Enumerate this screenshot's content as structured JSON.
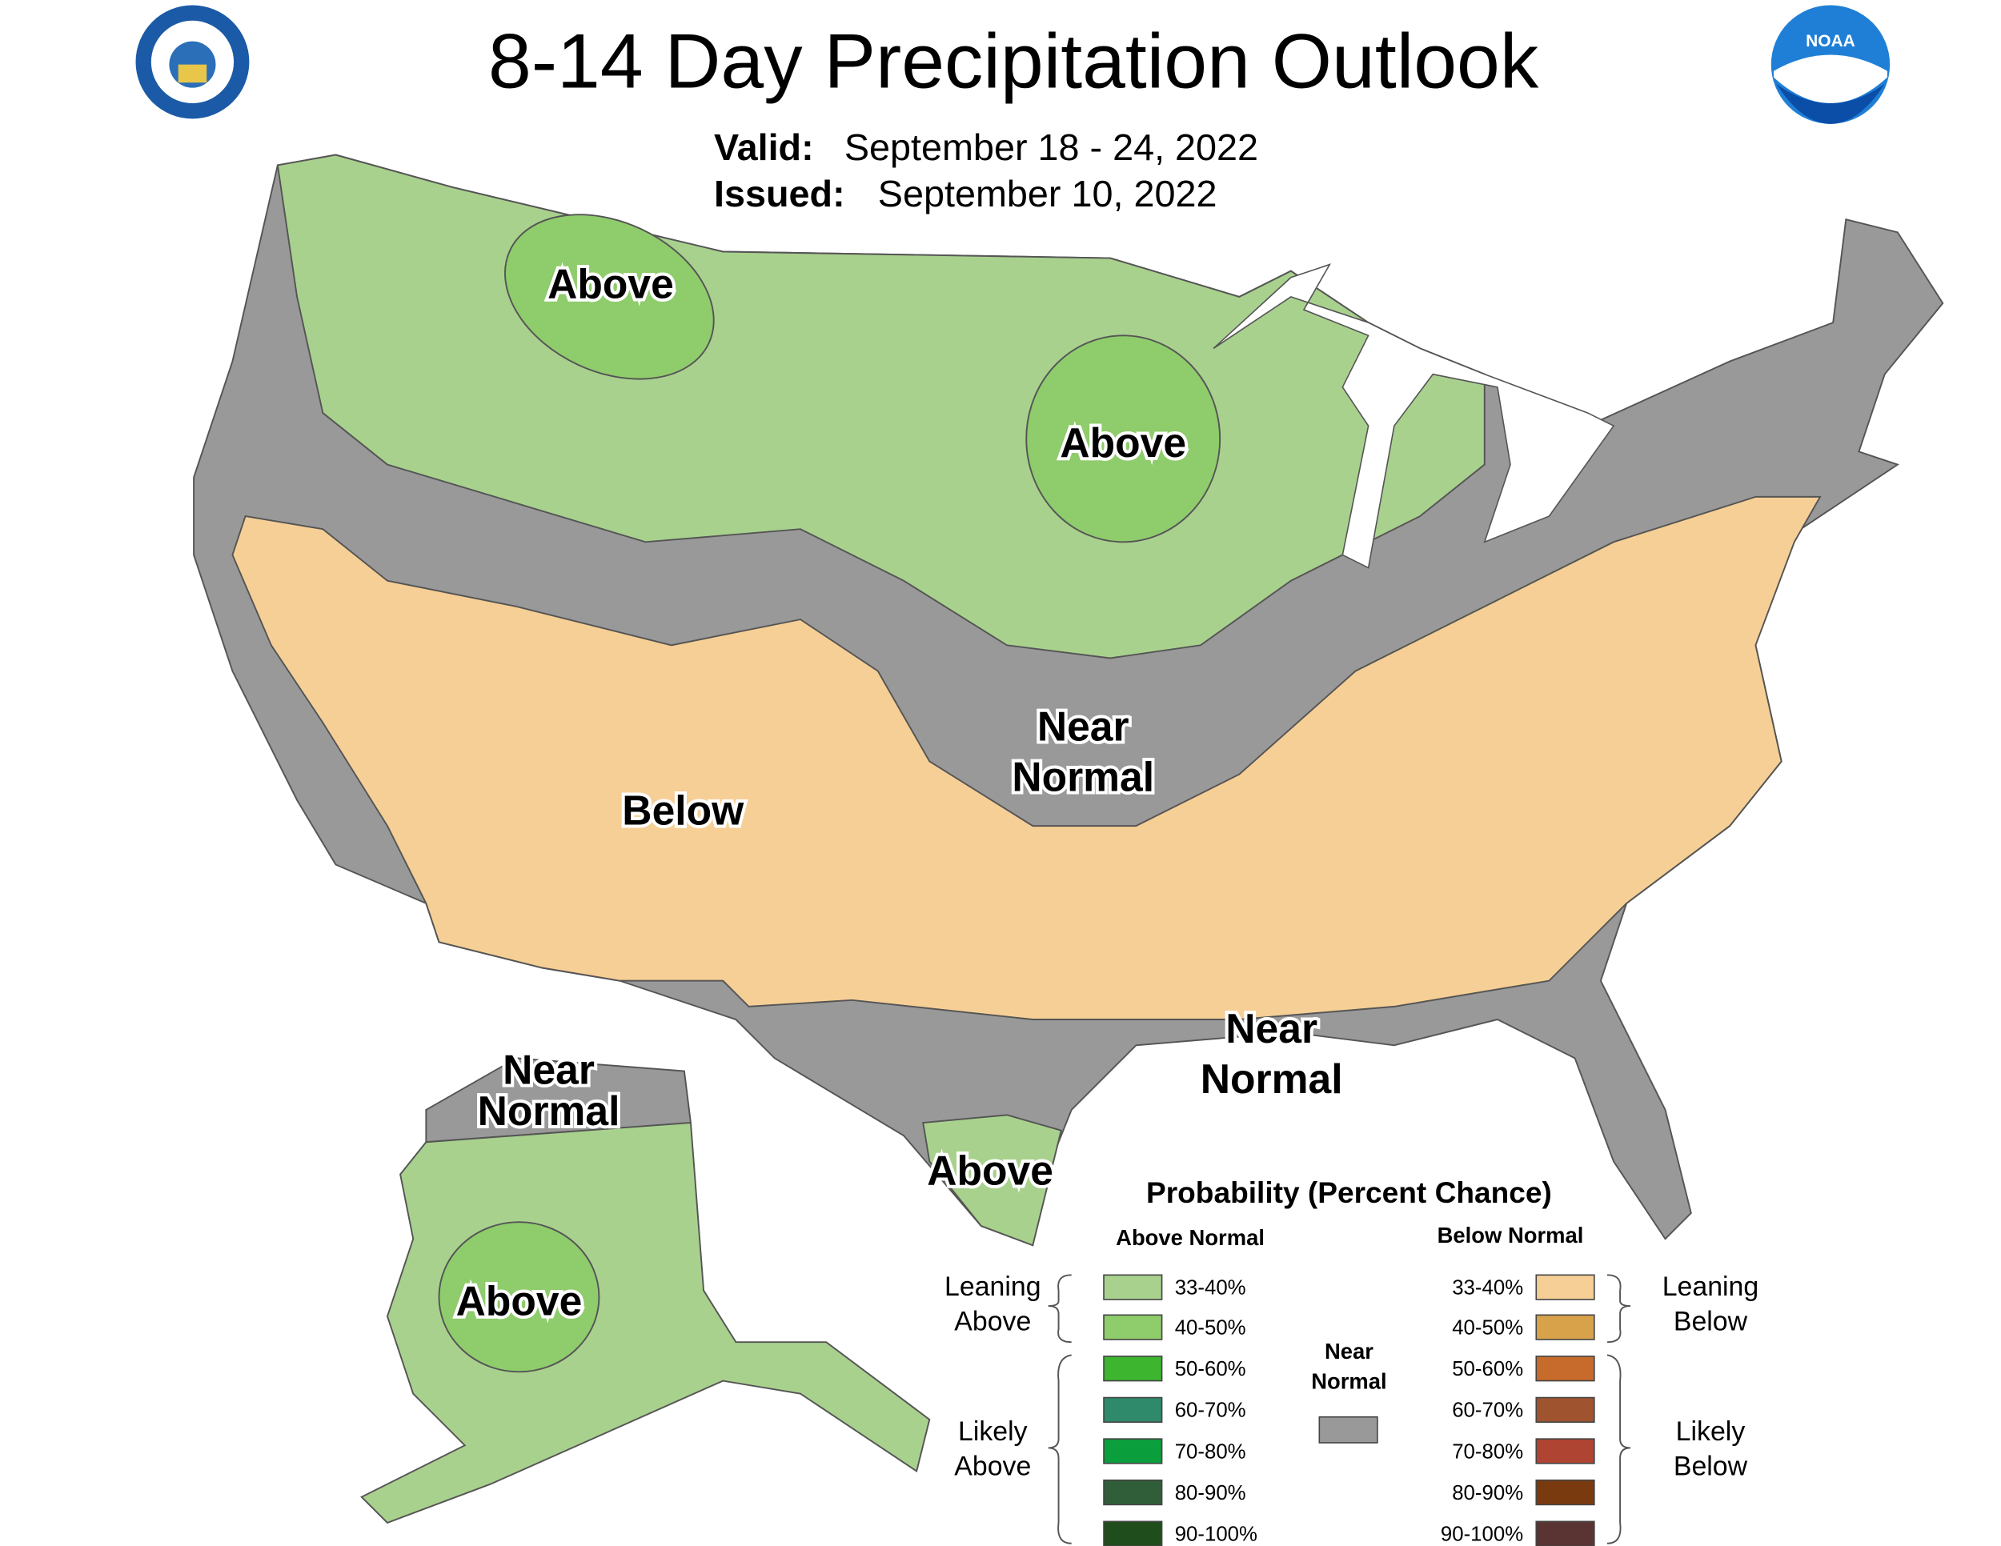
{
  "header": {
    "title": "8-14 Day Precipitation Outlook",
    "valid_label": "Valid:",
    "valid_dates": "September 18 - 24, 2022",
    "issued_label": "Issued:",
    "issued_date": "September 10, 2022"
  },
  "logos": {
    "noaa_text": "NOAA"
  },
  "map_labels": [
    {
      "lines": [
        "Above"
      ]
    },
    {
      "lines": [
        "Above"
      ]
    },
    {
      "lines": [
        "Near",
        "Normal"
      ]
    },
    {
      "lines": [
        "Below"
      ]
    },
    {
      "lines": [
        "Near",
        "Normal"
      ]
    },
    {
      "lines": [
        "Above"
      ]
    },
    {
      "lines": [
        "Near",
        "Normal"
      ]
    },
    {
      "lines": [
        "Above"
      ]
    }
  ],
  "legend": {
    "title": "Probability (Percent Chance)",
    "above_heading": "Above Normal",
    "below_heading": "Below Normal",
    "leaning_above": [
      "Leaning",
      "Above"
    ],
    "likely_above": [
      "Likely",
      "Above"
    ],
    "leaning_below": [
      "Leaning",
      "Below"
    ],
    "likely_below": [
      "Likely",
      "Below"
    ],
    "near_normal": {
      "lines": [
        "Near",
        "Normal"
      ],
      "color": "#999999"
    },
    "above_rows": [
      {
        "label": "33-40%",
        "color": "#a9d18e"
      },
      {
        "label": "40-50%",
        "color": "#8fcc6c"
      },
      {
        "label": "50-60%",
        "color": "#3db52f"
      },
      {
        "label": "60-70%",
        "color": "#2e8a6a"
      },
      {
        "label": "70-80%",
        "color": "#0a9e3c"
      },
      {
        "label": "80-90%",
        "color": "#2f5e38"
      },
      {
        "label": "90-100%",
        "color": "#1f4d1b"
      }
    ],
    "below_rows": [
      {
        "label": "33-40%",
        "color": "#f6cf96"
      },
      {
        "label": "40-50%",
        "color": "#d8a24b"
      },
      {
        "label": "50-60%",
        "color": "#c76b2c"
      },
      {
        "label": "60-70%",
        "color": "#a0532f"
      },
      {
        "label": "70-80%",
        "color": "#b04432"
      },
      {
        "label": "80-90%",
        "color": "#7a3a10"
      },
      {
        "label": "90-100%",
        "color": "#5a3333"
      }
    ]
  }
}
